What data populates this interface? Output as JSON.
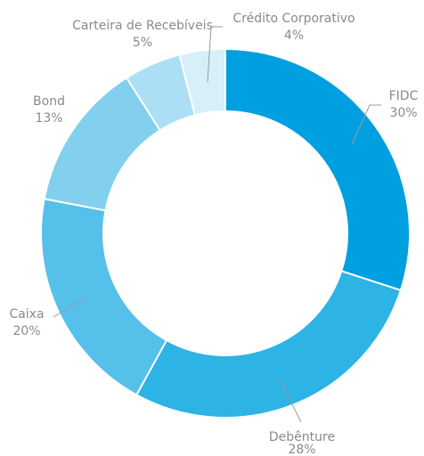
{
  "chart_data": {
    "type": "donut",
    "categories": [
      "FIDC",
      "Debênture",
      "Caixa",
      "Bond",
      "Carteira de Recebíveis",
      "Crédito Corporativo"
    ],
    "values": [
      30,
      28,
      20,
      13,
      5,
      4
    ],
    "value_labels": [
      "30%",
      "28%",
      "20%",
      "13%",
      "5%",
      "4%"
    ],
    "colors": [
      "#009fdf",
      "#2db3e4",
      "#55c0ea",
      "#82cfee",
      "#acdff3",
      "#d6eff9"
    ]
  }
}
